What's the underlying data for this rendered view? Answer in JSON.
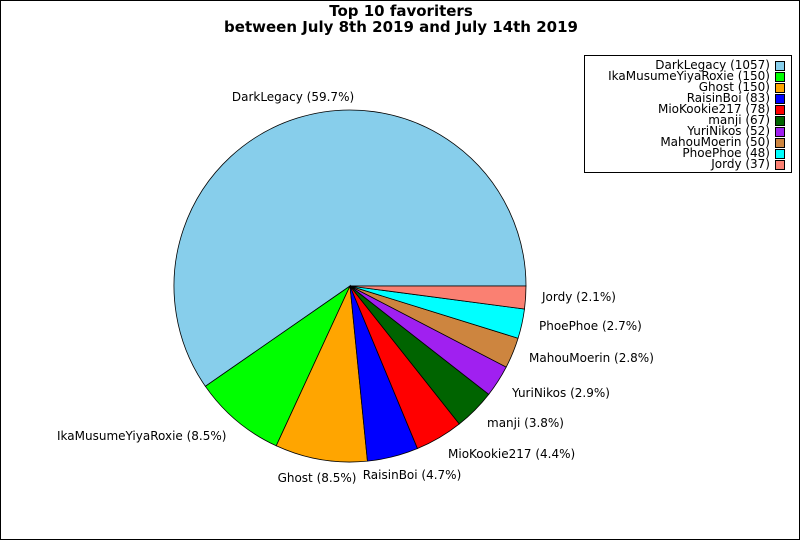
{
  "chart_data": {
    "type": "pie",
    "title": "Top 10 favoriters\nbetween July 8th 2019 and July 14th 2019",
    "title_lines": [
      "Top 10 favoriters",
      "between July 8th 2019 and July 14th 2019"
    ],
    "legend_position": "top-right",
    "slices": [
      {
        "label": "DarkLegacy",
        "value": 1057,
        "percent_label": "DarkLegacy (59.7%)",
        "legend_label": "DarkLegacy (1057)",
        "color": "#87ceeb"
      },
      {
        "label": "IkaMusumeYiyaRoxie",
        "value": 150,
        "percent_label": "IkaMusumeYiyaRoxie (8.5%)",
        "legend_label": "IkaMusumeYiyaRoxie (150)",
        "color": "#00ff00"
      },
      {
        "label": "Ghost",
        "value": 150,
        "percent_label": "Ghost (8.5%)",
        "legend_label": "Ghost (150)",
        "color": "#ffa500"
      },
      {
        "label": "RaisinBoi",
        "value": 83,
        "percent_label": "RaisinBoi (4.7%)",
        "legend_label": "RaisinBoi (83)",
        "color": "#0000ff"
      },
      {
        "label": "MioKookie217",
        "value": 78,
        "percent_label": "MioKookie217 (4.4%)",
        "legend_label": "MioKookie217 (78)",
        "color": "#ff0000"
      },
      {
        "label": "manji",
        "value": 67,
        "percent_label": "manji (3.8%)",
        "legend_label": "manji (67)",
        "color": "#006400"
      },
      {
        "label": "YuriNikos",
        "value": 52,
        "percent_label": "YuriNikos (2.9%)",
        "legend_label": "YuriNikos (52)",
        "color": "#a020f0"
      },
      {
        "label": "MahouMoerin",
        "value": 50,
        "percent_label": "MahouMoerin (2.8%)",
        "legend_label": "MahouMoerin (50)",
        "color": "#cd853f"
      },
      {
        "label": "PhoePhoe",
        "value": 48,
        "percent_label": "PhoePhoe (2.7%)",
        "legend_label": "PhoePhoe (48)",
        "color": "#00ffff"
      },
      {
        "label": "Jordy",
        "value": 37,
        "percent_label": "Jordy (2.1%)",
        "legend_label": "Jordy (37)",
        "color": "#fa8072"
      }
    ]
  }
}
